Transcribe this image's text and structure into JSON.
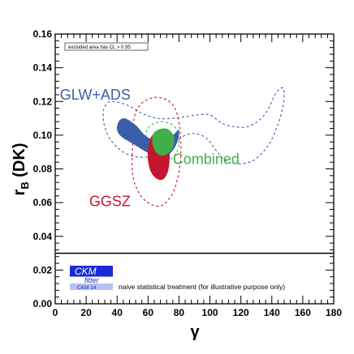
{
  "chart_data": {
    "type": "contour",
    "xlabel": "γ",
    "ylabel_main": "r",
    "ylabel_sub": "B",
    "ylabel_tail": " (DK)",
    "xlim": [
      0,
      180
    ],
    "ylim": [
      0.0,
      0.16
    ],
    "x_ticks": [
      0,
      20,
      40,
      60,
      80,
      100,
      120,
      140,
      160,
      180
    ],
    "x_tick_labels": [
      "0",
      "20",
      "40",
      "60",
      "80",
      "100",
      "120",
      "140",
      "160",
      "180"
    ],
    "y_ticks": [
      0.0,
      0.02,
      0.04,
      0.06,
      0.08,
      0.1,
      0.12,
      0.14,
      0.16
    ],
    "y_tick_labels": [
      "0.00",
      "0.02",
      "0.04",
      "0.06",
      "0.08",
      "0.10",
      "0.12",
      "0.14",
      "0.16"
    ],
    "legend_text": "excluded area has CL > 0.95",
    "separator_y": 0.03,
    "colors": {
      "glw_ads": "#3a5fa8",
      "ggsz": "#c4172f",
      "combined": "#3fb04a"
    },
    "regions": [
      {
        "name": "GLW+ADS",
        "color": "#3a5fa8",
        "filled_1sigma": [
          [
            40,
            0.103
          ],
          [
            41,
            0.108
          ],
          [
            45,
            0.11
          ],
          [
            52,
            0.106
          ],
          [
            58,
            0.1
          ],
          [
            64,
            0.097
          ],
          [
            70,
            0.097
          ],
          [
            76,
            0.1
          ],
          [
            80,
            0.103
          ],
          [
            79,
            0.096
          ],
          [
            74,
            0.089
          ],
          [
            67,
            0.087
          ],
          [
            59,
            0.09
          ],
          [
            50,
            0.095
          ],
          [
            43,
            0.099
          ]
        ],
        "dashed_2sigma": [
          [
            32,
            0.117
          ],
          [
            36,
            0.12
          ],
          [
            46,
            0.118
          ],
          [
            56,
            0.113
          ],
          [
            66,
            0.11
          ],
          [
            76,
            0.11
          ],
          [
            84,
            0.111
          ],
          [
            92,
            0.112
          ],
          [
            100,
            0.112
          ],
          [
            108,
            0.107
          ],
          [
            116,
            0.105
          ],
          [
            124,
            0.105
          ],
          [
            132,
            0.109
          ],
          [
            138,
            0.116
          ],
          [
            142,
            0.124
          ],
          [
            146,
            0.128
          ],
          [
            148,
            0.126
          ],
          [
            147,
            0.116
          ],
          [
            143,
            0.104
          ],
          [
            137,
            0.093
          ],
          [
            128,
            0.085
          ],
          [
            118,
            0.083
          ],
          [
            110,
            0.085
          ],
          [
            104,
            0.091
          ],
          [
            98,
            0.098
          ],
          [
            90,
            0.101
          ],
          [
            82,
            0.099
          ],
          [
            74,
            0.093
          ],
          [
            64,
            0.088
          ],
          [
            54,
            0.087
          ],
          [
            44,
            0.09
          ],
          [
            36,
            0.097
          ],
          [
            32,
            0.105
          ],
          [
            31,
            0.112
          ]
        ]
      },
      {
        "name": "GGSZ",
        "color": "#c4172f",
        "filled_1sigma": [
          [
            60,
            0.092
          ],
          [
            62,
            0.099
          ],
          [
            66,
            0.102
          ],
          [
            70,
            0.101
          ],
          [
            73,
            0.097
          ],
          [
            74,
            0.088
          ],
          [
            73,
            0.079
          ],
          [
            70,
            0.074
          ],
          [
            66,
            0.074
          ],
          [
            62,
            0.078
          ],
          [
            60,
            0.085
          ]
        ],
        "dashed_2sigma": [
          [
            50,
            0.094
          ],
          [
            51,
            0.11
          ],
          [
            55,
            0.118
          ],
          [
            62,
            0.122
          ],
          [
            69,
            0.122
          ],
          [
            75,
            0.119
          ],
          [
            79,
            0.112
          ],
          [
            81,
            0.1
          ],
          [
            81,
            0.086
          ],
          [
            79,
            0.074
          ],
          [
            75,
            0.064
          ],
          [
            68,
            0.058
          ],
          [
            60,
            0.06
          ],
          [
            54,
            0.066
          ],
          [
            50,
            0.077
          ]
        ]
      },
      {
        "name": "Combined",
        "color": "#3fb04a",
        "filled_1sigma": [
          [
            63,
            0.094
          ],
          [
            63,
            0.1
          ],
          [
            66,
            0.103
          ],
          [
            71,
            0.104
          ],
          [
            75,
            0.102
          ],
          [
            77,
            0.097
          ],
          [
            75,
            0.091
          ],
          [
            70,
            0.088
          ],
          [
            66,
            0.089
          ]
        ],
        "dashed_2sigma": [
          [
            59,
            0.093
          ],
          [
            59,
            0.102
          ],
          [
            62,
            0.106
          ],
          [
            68,
            0.108
          ],
          [
            74,
            0.107
          ],
          [
            78,
            0.104
          ],
          [
            80,
            0.098
          ],
          [
            79,
            0.091
          ],
          [
            75,
            0.086
          ],
          [
            69,
            0.085
          ],
          [
            63,
            0.087
          ]
        ]
      }
    ],
    "labels": [
      {
        "text": "GLW+ADS",
        "x": 3,
        "y": 0.121,
        "color": "#3a5fa8"
      },
      {
        "text": "GGSZ",
        "x": 22,
        "y": 0.058,
        "color": "#c4172f"
      },
      {
        "text": "Combined",
        "x": 76,
        "y": 0.083,
        "color": "#3fb04a"
      }
    ],
    "footnote": "naive statistical treatment (for illustrative purpose only)",
    "logo": {
      "name": "CKM",
      "subtitle": "fitter",
      "badge": "CKM 14"
    }
  }
}
